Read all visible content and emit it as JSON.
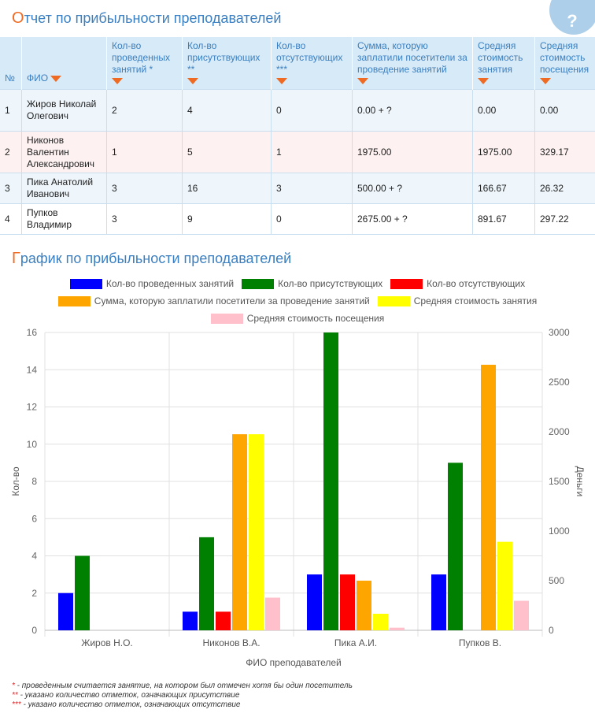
{
  "header": {
    "title_first": "О",
    "title_rest": "тчет по прибыльности преподавателей",
    "help_label": "?"
  },
  "table": {
    "columns": [
      "№",
      "ФИО",
      "Кол-во проведенных занятий *",
      "Кол-во присутствующих **",
      "Кол-во отсутствующих ***",
      "Сумма, которую заплатили посетители за проведение занятий",
      "Средняя стоимость занятия",
      "Средняя стоимость посещения"
    ],
    "rows": [
      [
        "1",
        "Жиров Николай Олегович",
        "2",
        "4",
        "0",
        "0.00 + ?",
        "0.00",
        "0.00"
      ],
      [
        "2",
        "Никонов Валентин Александрович",
        "1",
        "5",
        "1",
        "1975.00",
        "1975.00",
        "329.17"
      ],
      [
        "3",
        "Пика Анатолий Иванович",
        "3",
        "16",
        "3",
        "500.00 + ?",
        "166.67",
        "26.32"
      ],
      [
        "4",
        "Пупков Владимир",
        "3",
        "9",
        "0",
        "2675.00 + ?",
        "891.67",
        "297.22"
      ]
    ]
  },
  "chart_section": {
    "title_first": "Г",
    "title_rest": "рафик по прибыльности преподавателей"
  },
  "chart_data": {
    "type": "bar",
    "categories": [
      "Жиров Н.О.",
      "Никонов В.А.",
      "Пика  А.И.",
      "Пупков В."
    ],
    "xlabel": "ФИО преподавателей",
    "ylabel": "Кол-во",
    "y2label": "Деньги",
    "ylim": [
      0,
      16
    ],
    "y2lim": [
      0,
      3000
    ],
    "yticks": [
      0,
      2,
      4,
      6,
      8,
      10,
      12,
      14,
      16
    ],
    "y2ticks": [
      0,
      500,
      1000,
      1500,
      2000,
      2500,
      3000
    ],
    "grid": true,
    "legend_position": "top",
    "series": [
      {
        "name": "Кол-во проведенных занятий",
        "color": "#0000ff",
        "axis": "left",
        "values": [
          2,
          1,
          3,
          3
        ]
      },
      {
        "name": "Кол-во присутствующих",
        "color": "#008000",
        "axis": "left",
        "values": [
          4,
          5,
          16,
          9
        ]
      },
      {
        "name": "Кол-во отсутствующих",
        "color": "#ff0000",
        "axis": "left",
        "values": [
          0,
          1,
          3,
          0
        ]
      },
      {
        "name": "Сумма, которую заплатили посетители за проведение занятий",
        "color": "#ffa500",
        "axis": "right",
        "values": [
          0,
          1975,
          500,
          2675
        ]
      },
      {
        "name": "Средняя стоимость занятия",
        "color": "#ffff00",
        "axis": "right",
        "values": [
          0,
          1975,
          166.67,
          891.67
        ]
      },
      {
        "name": "Средняя стоимость посещения",
        "color": "#ffc0cb",
        "axis": "right",
        "values": [
          0,
          329.17,
          26.32,
          297.22
        ]
      }
    ],
    "legend_rows": [
      [
        0,
        1,
        2
      ],
      [
        3,
        4
      ],
      [
        5
      ]
    ]
  },
  "notes": [
    {
      "stars": "*",
      "text": " - проведенным считается занятие, на котором был отмечен хотя бы один посетитель"
    },
    {
      "stars": "**",
      "text": " - указано количество отметок, означающих присутствие"
    },
    {
      "stars": "***",
      "text": " - указано количество отметок, означающих отсутствие"
    }
  ]
}
